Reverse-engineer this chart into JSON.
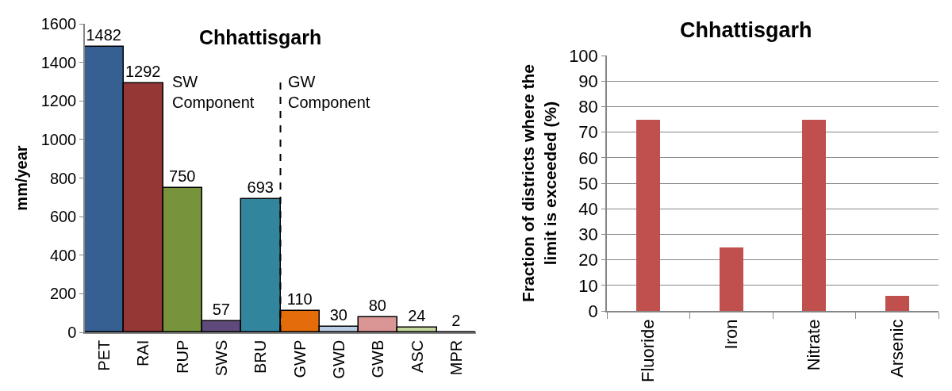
{
  "chart_data": [
    {
      "type": "bar",
      "title": "Chhattisgarh",
      "ylabel": "mm/year",
      "categories": [
        "PET",
        "RAI",
        "RUP",
        "SWS",
        "BRU",
        "GWP",
        "GWD",
        "GWB",
        "ASC",
        "MPR"
      ],
      "values": [
        1482,
        1292,
        750,
        57,
        693,
        110,
        30,
        80,
        24,
        2
      ],
      "colors": [
        "#376092",
        "#953735",
        "#77933C",
        "#604A7B",
        "#31859C",
        "#E46C0A",
        "#B9CDE5",
        "#D99694",
        "#C3D69B",
        "#000000"
      ],
      "ylim": [
        0,
        1600
      ],
      "yticks": [
        0,
        200,
        400,
        600,
        800,
        1000,
        1200,
        1400,
        1600
      ],
      "data_labels": true,
      "annotations": [
        "SW\nComponent",
        "GW\nComponent"
      ]
    },
    {
      "type": "bar",
      "title": "Chhattisgarh",
      "ylabel": "Fraction of districts where the\nlimit is exceeded (%)",
      "categories": [
        "Fluoride",
        "Iron",
        "Nitrate",
        "Arsenic"
      ],
      "values": [
        75,
        25,
        75,
        6
      ],
      "color": "#C0504D",
      "ylim": [
        0,
        100
      ],
      "yticks": [
        0,
        10,
        20,
        30,
        40,
        50,
        60,
        70,
        80,
        90,
        100
      ],
      "grid": "y"
    }
  ]
}
